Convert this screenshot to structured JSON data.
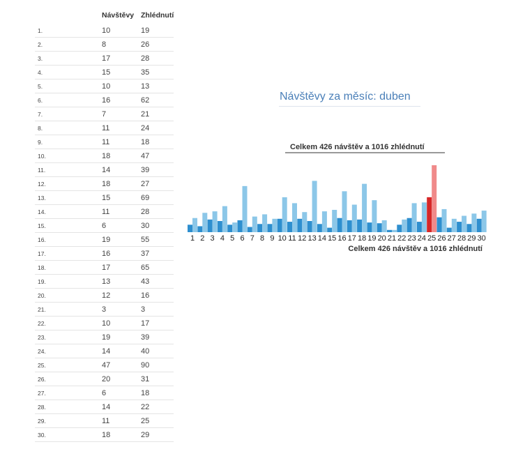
{
  "table": {
    "headers": [
      "",
      "Návštěvy",
      "Zhlédnutí"
    ],
    "rows": [
      [
        "1.",
        "10",
        "19"
      ],
      [
        "2.",
        "8",
        "26"
      ],
      [
        "3.",
        "17",
        "28"
      ],
      [
        "4.",
        "15",
        "35"
      ],
      [
        "5.",
        "10",
        "13"
      ],
      [
        "6.",
        "16",
        "62"
      ],
      [
        "7.",
        "7",
        "21"
      ],
      [
        "8.",
        "11",
        "24"
      ],
      [
        "9.",
        "11",
        "18"
      ],
      [
        "10.",
        "18",
        "47"
      ],
      [
        "11.",
        "14",
        "39"
      ],
      [
        "12.",
        "18",
        "27"
      ],
      [
        "13.",
        "15",
        "69"
      ],
      [
        "14.",
        "11",
        "28"
      ],
      [
        "15.",
        "6",
        "30"
      ],
      [
        "16.",
        "19",
        "55"
      ],
      [
        "17.",
        "16",
        "37"
      ],
      [
        "18.",
        "17",
        "65"
      ],
      [
        "19.",
        "13",
        "43"
      ],
      [
        "20.",
        "12",
        "16"
      ],
      [
        "21.",
        "3",
        "3"
      ],
      [
        "22.",
        "10",
        "17"
      ],
      [
        "23.",
        "19",
        "39"
      ],
      [
        "24.",
        "14",
        "40"
      ],
      [
        "25.",
        "47",
        "90"
      ],
      [
        "26.",
        "20",
        "31"
      ],
      [
        "27.",
        "6",
        "18"
      ],
      [
        "28.",
        "14",
        "22"
      ],
      [
        "29.",
        "11",
        "25"
      ],
      [
        "30.",
        "18",
        "29"
      ]
    ]
  },
  "chart_heading": "Návštěvy za měsíc: duben",
  "chart_data": {
    "type": "bar",
    "title": "Celkem 426 návštěv a 1016 zhlédnutí",
    "xlabel": "Celkem 426 návštěv a 1016 zhlédnutí",
    "ylabel": "",
    "categories": [
      "1",
      "2",
      "3",
      "4",
      "5",
      "6",
      "7",
      "8",
      "9",
      "10",
      "11",
      "12",
      "13",
      "14",
      "15",
      "16",
      "17",
      "18",
      "19",
      "20",
      "21",
      "22",
      "23",
      "24",
      "25",
      "26",
      "27",
      "28",
      "29",
      "30"
    ],
    "series": [
      {
        "values": [
          10,
          8,
          17,
          15,
          10,
          16,
          7,
          11,
          11,
          18,
          14,
          18,
          15,
          11,
          6,
          19,
          16,
          17,
          13,
          12,
          3,
          10,
          19,
          14,
          47,
          20,
          6,
          14,
          11,
          18
        ]
      },
      {
        "values": [
          19,
          26,
          28,
          35,
          13,
          62,
          21,
          24,
          18,
          47,
          39,
          27,
          69,
          28,
          30,
          55,
          37,
          65,
          43,
          16,
          3,
          17,
          39,
          40,
          90,
          31,
          18,
          22,
          25,
          29
        ]
      }
    ],
    "highlight_category": "25",
    "ylim": [
      0,
      90
    ],
    "grid": false,
    "legend": "none",
    "colors": {
      "visits": "#2e8fcf",
      "views": "#8cc7e8",
      "visits_highlight": "#d62728",
      "views_highlight": "#f08a8a",
      "title_rule": "#333333"
    }
  }
}
